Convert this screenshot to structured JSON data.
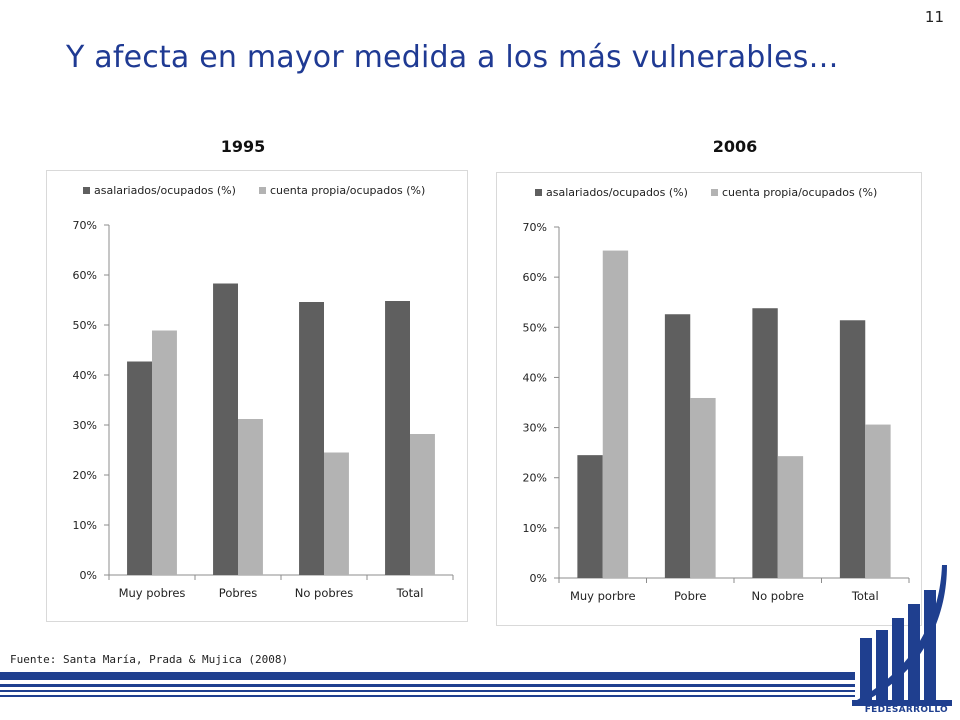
{
  "page_number": "11",
  "title": "Y afecta en mayor medida a los más vulnerables…",
  "source": "Fuente: Santa María, Prada & Mujica (2008)",
  "logo_text": "FEDESARROLLO",
  "colors": {
    "title": "#1f3a93",
    "series_dark": "#5f5f5f",
    "series_light": "#b3b3b3",
    "brand": "#1f3f8f"
  },
  "chart_data": [
    {
      "type": "bar",
      "title": "1995",
      "categories": [
        "Muy pobres",
        "Pobres",
        "No pobres",
        "Total"
      ],
      "series": [
        {
          "name": "asalariados/ocupados (%)",
          "values": [
            42.7,
            58.3,
            54.6,
            54.8
          ]
        },
        {
          "name": "cuenta propia/ocupados (%)",
          "values": [
            48.9,
            31.2,
            24.5,
            28.2
          ]
        }
      ],
      "ylim": [
        0,
        70
      ],
      "yticks": [
        "0%",
        "10%",
        "20%",
        "30%",
        "40%",
        "50%",
        "60%",
        "70%"
      ],
      "legend": "top"
    },
    {
      "type": "bar",
      "title": "2006",
      "categories": [
        "Muy porbre",
        "Pobre",
        "No pobre",
        "Total"
      ],
      "series": [
        {
          "name": "asalariados/ocupados (%)",
          "values": [
            24.5,
            52.6,
            53.8,
            51.4
          ]
        },
        {
          "name": "cuenta propia/ocupados (%)",
          "values": [
            65.3,
            35.9,
            24.3,
            30.6
          ]
        }
      ],
      "ylim": [
        0,
        70
      ],
      "yticks": [
        "0%",
        "10%",
        "20%",
        "30%",
        "40%",
        "50%",
        "60%",
        "70%"
      ],
      "legend": "top"
    }
  ]
}
